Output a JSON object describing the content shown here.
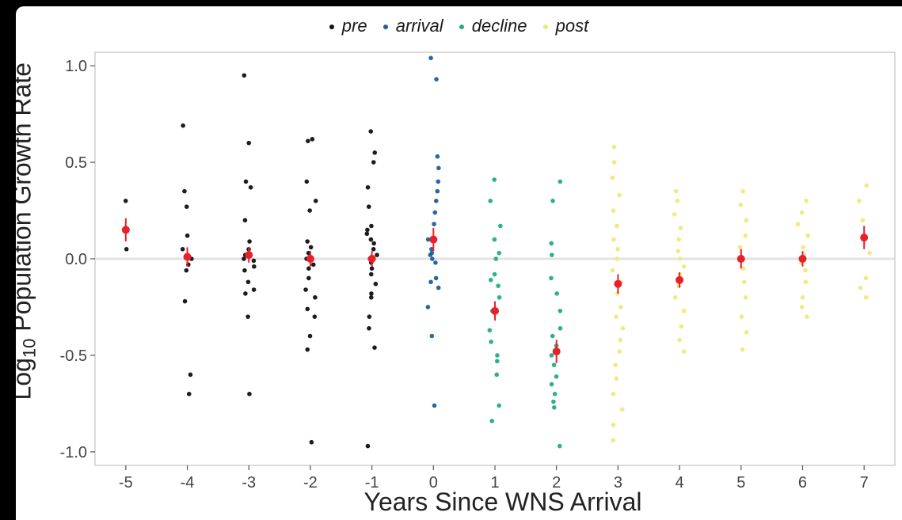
{
  "chart_data": {
    "type": "scatter",
    "xlabel": "Years Since WNS Arrival",
    "ylabel_base": "Log",
    "ylabel_sub": "10",
    "ylabel_rest": " Population Growth Rate",
    "xlim": [
      -5.5,
      7.5
    ],
    "ylim": [
      -1.07,
      1.07
    ],
    "x_ticks": [
      -5,
      -4,
      -3,
      -2,
      -1,
      0,
      1,
      2,
      3,
      4,
      5,
      6,
      7
    ],
    "x_tick_labels": [
      "-5",
      "-4",
      "-3",
      "-2",
      "-1",
      "0",
      "1",
      "2",
      "3",
      "4",
      "5",
      "6",
      "7"
    ],
    "y_ticks": [
      -1.0,
      -0.5,
      0.0,
      0.5,
      1.0
    ],
    "y_tick_labels": [
      "-1.0",
      "-0.5",
      "0.0",
      "0.5",
      "1.0"
    ],
    "reference_line": 0.0,
    "legend_position": "top",
    "series": [
      {
        "name": "pre",
        "color": "#111111",
        "x_values": [
          -5,
          -4,
          -3,
          -2,
          -1
        ],
        "points": [
          [
            0.3,
            0.05
          ],
          [
            0.69,
            0.35,
            0.27,
            0.12,
            0.05,
            0.0,
            -0.03,
            -0.06,
            -0.22,
            -0.6,
            -0.7
          ],
          [
            0.95,
            0.6,
            0.4,
            0.37,
            0.2,
            0.09,
            0.05,
            0.02,
            0.0,
            -0.01,
            -0.04,
            -0.06,
            -0.12,
            -0.16,
            -0.18,
            -0.3,
            -0.7
          ],
          [
            0.62,
            0.61,
            0.4,
            0.3,
            0.25,
            0.09,
            0.06,
            0.03,
            0.0,
            -0.03,
            -0.05,
            -0.1,
            -0.16,
            -0.2,
            -0.26,
            -0.3,
            -0.4,
            -0.47,
            -0.95
          ],
          [
            0.66,
            0.55,
            0.5,
            0.37,
            0.27,
            0.17,
            0.15,
            0.13,
            0.1,
            0.08,
            0.05,
            0.02,
            0.0,
            -0.02,
            -0.05,
            -0.08,
            -0.13,
            -0.18,
            -0.2,
            -0.3,
            -0.36,
            -0.46,
            -0.97
          ]
        ]
      },
      {
        "name": "arrival",
        "color": "#1f5f99",
        "x_values": [
          0
        ],
        "points": [
          [
            1.04,
            0.93,
            0.53,
            0.47,
            0.4,
            0.35,
            0.3,
            0.24,
            0.18,
            0.1,
            0.05,
            0.03,
            0.02,
            0.0,
            -0.02,
            -0.1,
            -0.12,
            -0.15,
            -0.25,
            -0.4,
            -0.76
          ]
        ]
      },
      {
        "name": "decline",
        "color": "#1fae85",
        "x_values": [
          1,
          2
        ],
        "points": [
          [
            0.41,
            0.3,
            0.17,
            0.1,
            0.03,
            0.0,
            -0.08,
            -0.11,
            -0.14,
            -0.2,
            -0.27,
            -0.37,
            -0.43,
            -0.5,
            -0.53,
            -0.6,
            -0.76,
            -0.84
          ],
          [
            0.4,
            0.3,
            0.08,
            0.02,
            -0.1,
            -0.18,
            -0.27,
            -0.36,
            -0.4,
            -0.45,
            -0.5,
            -0.55,
            -0.61,
            -0.65,
            -0.7,
            -0.74,
            -0.77,
            -0.97
          ]
        ]
      },
      {
        "name": "post",
        "color": "#f3e77a",
        "x_values": [
          3,
          4,
          5,
          6,
          7
        ],
        "points": [
          [
            0.58,
            0.5,
            0.42,
            0.33,
            0.25,
            0.17,
            0.1,
            0.05,
            0.0,
            -0.06,
            -0.12,
            -0.18,
            -0.25,
            -0.3,
            -0.36,
            -0.42,
            -0.48,
            -0.55,
            -0.62,
            -0.7,
            -0.78,
            -0.86,
            -0.94
          ],
          [
            0.35,
            0.3,
            0.23,
            0.16,
            0.1,
            0.04,
            0.0,
            -0.04,
            -0.08,
            -0.14,
            -0.2,
            -0.27,
            -0.35,
            -0.42,
            -0.48
          ],
          [
            0.35,
            0.28,
            0.2,
            0.12,
            0.06,
            0.0,
            -0.05,
            -0.12,
            -0.2,
            -0.3,
            -0.38,
            -0.47
          ],
          [
            0.3,
            0.24,
            0.18,
            0.12,
            0.06,
            0.02,
            -0.02,
            -0.06,
            -0.12,
            -0.2,
            -0.25,
            -0.3
          ],
          [
            0.38,
            0.3,
            0.2,
            0.1,
            0.03,
            -0.1,
            -0.15,
            -0.2
          ]
        ]
      }
    ],
    "means": {
      "name": "mean",
      "color": "#e8202a",
      "x": [
        -5,
        -4,
        -3,
        -2,
        -1,
        0,
        1,
        2,
        3,
        4,
        5,
        6,
        7
      ],
      "y": [
        0.15,
        0.01,
        0.02,
        0.0,
        0.0,
        0.1,
        -0.27,
        -0.48,
        -0.13,
        -0.11,
        0.0,
        0.0,
        0.11
      ],
      "err": [
        0.06,
        0.05,
        0.04,
        0.04,
        0.04,
        0.06,
        0.05,
        0.06,
        0.05,
        0.04,
        0.05,
        0.04,
        0.06
      ]
    }
  }
}
